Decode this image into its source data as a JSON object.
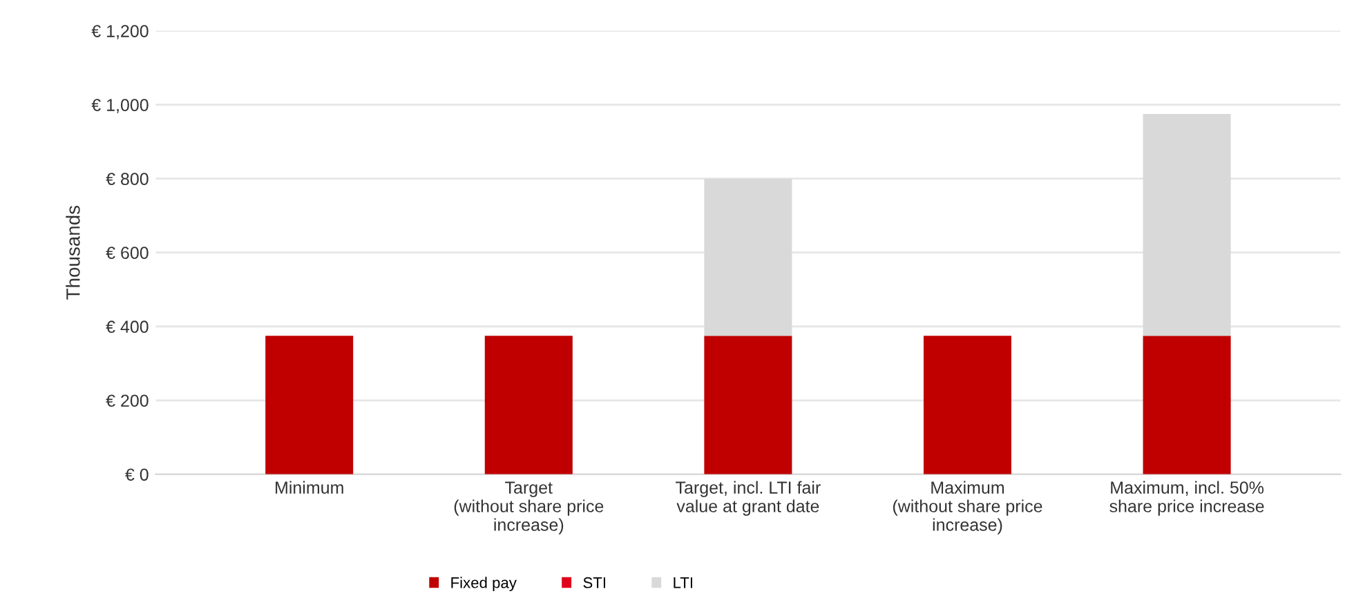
{
  "chart_data": {
    "type": "bar",
    "stacked": true,
    "ylabel": "Thousands",
    "categories": [
      "Minimum",
      "Target\n(without share price\nincrease)",
      "Target, incl. LTI fair\nvalue at grant date",
      "Maximum\n(without share price\nincrease)",
      "Maximum, incl. 50%\nshare price increase"
    ],
    "series": [
      {
        "name": "Fixed pay",
        "color": "#c00000",
        "values": [
          375,
          375,
          375,
          375,
          375
        ]
      },
      {
        "name": "STI",
        "color": "#e0001b",
        "values": [
          0,
          0,
          0,
          0,
          0
        ]
      },
      {
        "name": "LTI",
        "color": "#d9d9d9",
        "values": [
          0,
          0,
          425,
          0,
          600
        ]
      }
    ],
    "ylim": [
      0,
      1200
    ],
    "yticks": [
      {
        "value": 0,
        "label": "€ 0"
      },
      {
        "value": 200,
        "label": "€ 200"
      },
      {
        "value": 400,
        "label": "€ 400"
      },
      {
        "value": 600,
        "label": "€ 600"
      },
      {
        "value": 800,
        "label": "€ 800"
      },
      {
        "value": 1000,
        "label": "€ 1,000"
      },
      {
        "value": 1200,
        "label": "€ 1,200"
      }
    ],
    "grid": "y",
    "legend": "bottom"
  }
}
